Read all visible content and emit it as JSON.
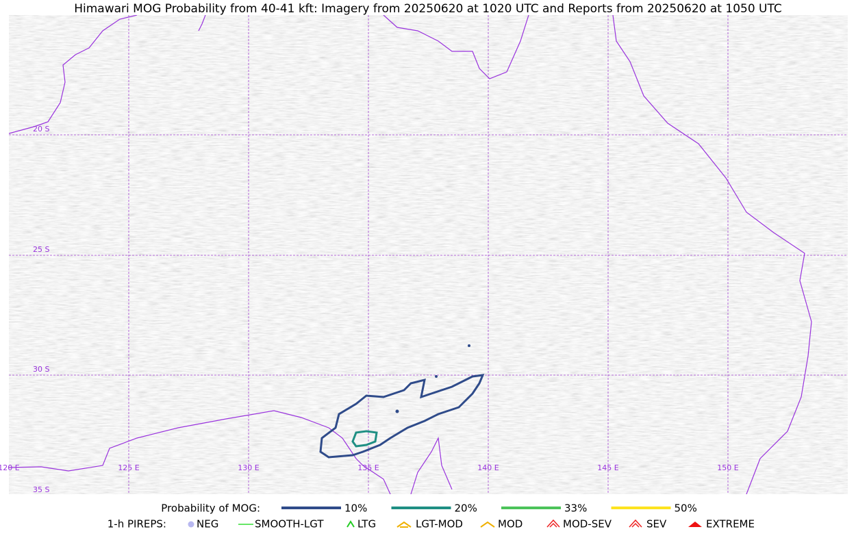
{
  "title": "Himawari MOG Probability from 40-41 kft: Imagery from 20250620 at 1020 UTC and Reports from 20250620 at 1050 UTC",
  "map": {
    "lat_labels": [
      "20 S",
      "25 S",
      "30 S",
      "35 S"
    ],
    "lon_labels": [
      "120 E",
      "125 E",
      "130 E",
      "135 E",
      "140 E",
      "145 E",
      "150 E"
    ]
  },
  "legend": {
    "mog_label": "Probability of MOG:",
    "mog_items": [
      {
        "label": "10%",
        "color": "#2f4b8a"
      },
      {
        "label": "20%",
        "color": "#1f8f83"
      },
      {
        "label": "33%",
        "color": "#4cc35a"
      },
      {
        "label": "50%",
        "color": "#fde31f"
      }
    ],
    "pirep_label": "1-h PIREPS:",
    "pirep_items": [
      {
        "label": "NEG",
        "color": "#b8b8f0"
      },
      {
        "label": "SMOOTH-LGT",
        "color": "#33dd33"
      },
      {
        "label": "LTG",
        "color": "#22cc22"
      },
      {
        "label": "LGT-MOD",
        "color": "#f0b000"
      },
      {
        "label": "MOD",
        "color": "#f0b000"
      },
      {
        "label": "MOD-SEV",
        "color": "#ee2222"
      },
      {
        "label": "SEV",
        "color": "#ee2222"
      },
      {
        "label": "EXTREME",
        "color": "#ee1111"
      }
    ]
  }
}
